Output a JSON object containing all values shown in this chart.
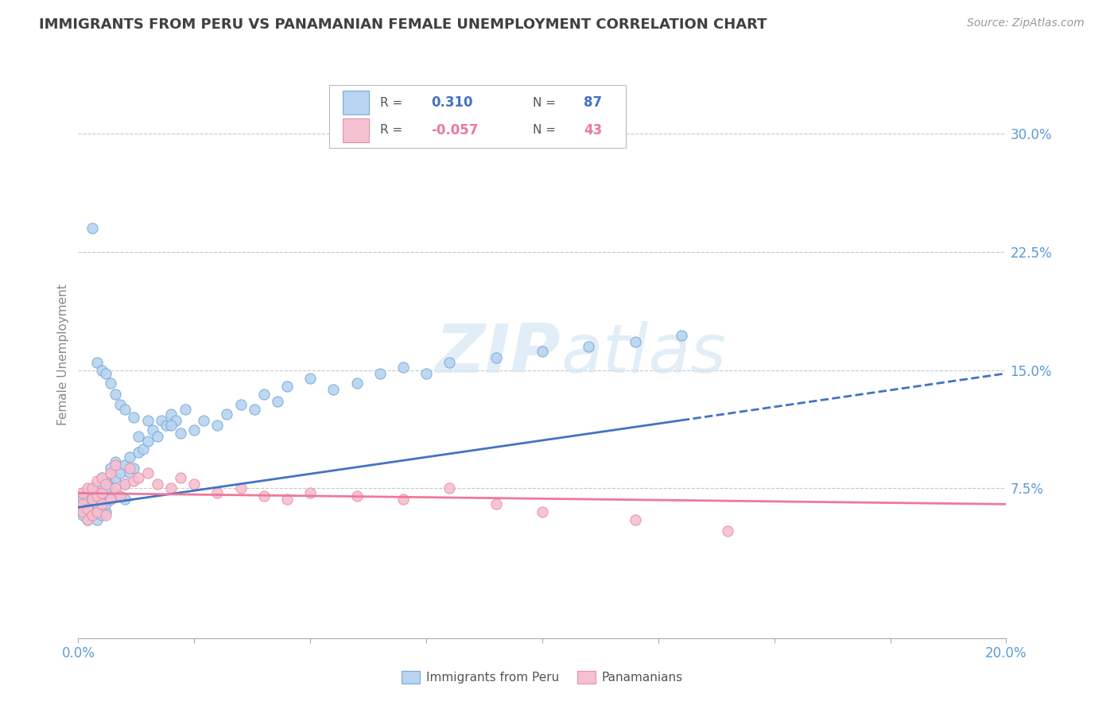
{
  "title": "IMMIGRANTS FROM PERU VS PANAMANIAN FEMALE UNEMPLOYMENT CORRELATION CHART",
  "source": "Source: ZipAtlas.com",
  "ylabel": "Female Unemployment",
  "xlim": [
    0.0,
    0.2
  ],
  "ylim": [
    -0.02,
    0.34
  ],
  "yticks": [
    0.075,
    0.15,
    0.225,
    0.3
  ],
  "ytick_labels": [
    "7.5%",
    "15.0%",
    "22.5%",
    "30.0%"
  ],
  "xticks": [
    0.0,
    0.025,
    0.05,
    0.075,
    0.1,
    0.125,
    0.15,
    0.175,
    0.2
  ],
  "xtick_edge_labels": [
    "0.0%",
    "20.0%"
  ],
  "series1_label": "Immigrants from Peru",
  "series1_color": "#b8d4f0",
  "series1_edge": "#7aaad8",
  "series1_R": 0.31,
  "series1_N": 87,
  "series2_label": "Panamanians",
  "series2_color": "#f5c0d0",
  "series2_edge": "#e890aa",
  "series2_R": -0.057,
  "series2_N": 43,
  "trend1_color": "#4472c4",
  "trend2_color": "#f07898",
  "background_color": "#ffffff",
  "grid_color": "#c8c8c8",
  "title_color": "#404040",
  "axis_tick_color": "#5b9bd5",
  "watermark_color": "#d5e8f5",
  "peru_x": [
    0.001,
    0.001,
    0.001,
    0.001,
    0.001,
    0.002,
    0.002,
    0.002,
    0.002,
    0.002,
    0.003,
    0.003,
    0.003,
    0.003,
    0.003,
    0.004,
    0.004,
    0.004,
    0.004,
    0.004,
    0.005,
    0.005,
    0.005,
    0.005,
    0.006,
    0.006,
    0.006,
    0.006,
    0.007,
    0.007,
    0.007,
    0.007,
    0.008,
    0.008,
    0.008,
    0.009,
    0.009,
    0.01,
    0.01,
    0.01,
    0.011,
    0.011,
    0.012,
    0.013,
    0.013,
    0.014,
    0.015,
    0.016,
    0.017,
    0.018,
    0.019,
    0.02,
    0.021,
    0.022,
    0.023,
    0.025,
    0.027,
    0.03,
    0.032,
    0.035,
    0.038,
    0.04,
    0.043,
    0.045,
    0.05,
    0.055,
    0.06,
    0.065,
    0.07,
    0.075,
    0.08,
    0.09,
    0.1,
    0.11,
    0.12,
    0.13,
    0.003,
    0.004,
    0.005,
    0.006,
    0.007,
    0.008,
    0.009,
    0.01,
    0.012,
    0.015,
    0.02
  ],
  "peru_y": [
    0.065,
    0.07,
    0.06,
    0.068,
    0.058,
    0.065,
    0.072,
    0.06,
    0.068,
    0.055,
    0.058,
    0.065,
    0.07,
    0.062,
    0.075,
    0.06,
    0.068,
    0.055,
    0.075,
    0.065,
    0.07,
    0.078,
    0.058,
    0.082,
    0.072,
    0.06,
    0.08,
    0.065,
    0.068,
    0.078,
    0.088,
    0.075,
    0.082,
    0.092,
    0.072,
    0.085,
    0.07,
    0.078,
    0.09,
    0.068,
    0.085,
    0.095,
    0.088,
    0.098,
    0.108,
    0.1,
    0.105,
    0.112,
    0.108,
    0.118,
    0.115,
    0.122,
    0.118,
    0.11,
    0.125,
    0.112,
    0.118,
    0.115,
    0.122,
    0.128,
    0.125,
    0.135,
    0.13,
    0.14,
    0.145,
    0.138,
    0.142,
    0.148,
    0.152,
    0.148,
    0.155,
    0.158,
    0.162,
    0.165,
    0.168,
    0.172,
    0.24,
    0.155,
    0.15,
    0.148,
    0.142,
    0.135,
    0.128,
    0.125,
    0.12,
    0.118,
    0.115
  ],
  "pan_x": [
    0.001,
    0.001,
    0.001,
    0.002,
    0.002,
    0.002,
    0.003,
    0.003,
    0.003,
    0.004,
    0.004,
    0.004,
    0.005,
    0.005,
    0.005,
    0.006,
    0.006,
    0.007,
    0.007,
    0.008,
    0.008,
    0.009,
    0.01,
    0.011,
    0.012,
    0.013,
    0.015,
    0.017,
    0.02,
    0.022,
    0.025,
    0.03,
    0.035,
    0.04,
    0.045,
    0.05,
    0.06,
    0.07,
    0.08,
    0.09,
    0.1,
    0.12,
    0.14
  ],
  "pan_y": [
    0.065,
    0.06,
    0.072,
    0.062,
    0.075,
    0.055,
    0.068,
    0.058,
    0.075,
    0.06,
    0.07,
    0.08,
    0.065,
    0.072,
    0.082,
    0.058,
    0.078,
    0.068,
    0.085,
    0.075,
    0.09,
    0.07,
    0.078,
    0.088,
    0.08,
    0.082,
    0.085,
    0.078,
    0.075,
    0.082,
    0.078,
    0.072,
    0.075,
    0.07,
    0.068,
    0.072,
    0.07,
    0.068,
    0.075,
    0.065,
    0.06,
    0.055,
    0.048
  ],
  "trend1_x": [
    0.0,
    0.2
  ],
  "trend1_y": [
    0.063,
    0.148
  ],
  "trend2_x": [
    0.0,
    0.2
  ],
  "trend2_y": [
    0.072,
    0.065
  ]
}
